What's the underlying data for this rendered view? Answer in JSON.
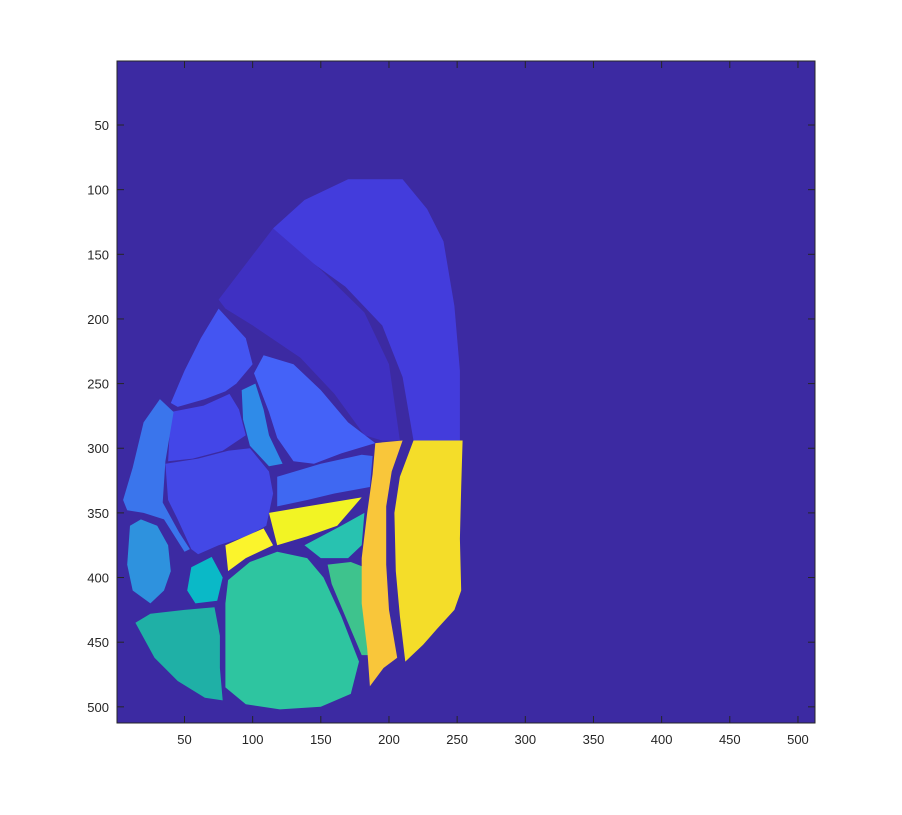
{
  "chart_data": {
    "type": "heatmap",
    "title": "",
    "xlabel": "",
    "ylabel": "",
    "xlim": [
      0.5,
      512.5
    ],
    "ylim": [
      0.5,
      512.5
    ],
    "y_reversed": true,
    "grid": false,
    "colormap": "parula",
    "background_color": "#3c2aa2",
    "boundary_color": "#3c2aa2",
    "x_ticks": [
      50,
      100,
      150,
      200,
      250,
      300,
      350,
      400,
      450,
      500
    ],
    "y_ticks": [
      50,
      100,
      150,
      200,
      250,
      300,
      350,
      400,
      450,
      500
    ],
    "regions": [
      {
        "name": "region-top-large",
        "color": "#433cdc",
        "polygon": [
          [
            115,
            130
          ],
          [
            138,
            108
          ],
          [
            170,
            92
          ],
          [
            210,
            92
          ],
          [
            228,
            115
          ],
          [
            240,
            140
          ],
          [
            248,
            190
          ],
          [
            252,
            240
          ],
          [
            252,
            294
          ],
          [
            218,
            294
          ],
          [
            210,
            245
          ],
          [
            195,
            205
          ],
          [
            168,
            175
          ],
          [
            135,
            150
          ],
          [
            118,
            136
          ]
        ]
      },
      {
        "name": "region-top-band",
        "color": "#3f30c2",
        "polygon": [
          [
            75,
            185
          ],
          [
            115,
            130
          ],
          [
            150,
            162
          ],
          [
            182,
            195
          ],
          [
            200,
            235
          ],
          [
            208,
            294
          ],
          [
            195,
            294
          ],
          [
            182,
            290
          ],
          [
            160,
            258
          ],
          [
            135,
            230
          ],
          [
            100,
            205
          ],
          [
            80,
            192
          ]
        ]
      },
      {
        "name": "region-left-upper",
        "color": "#4455f2",
        "polygon": [
          [
            40,
            265
          ],
          [
            50,
            240
          ],
          [
            62,
            215
          ],
          [
            75,
            192
          ],
          [
            95,
            215
          ],
          [
            100,
            235
          ],
          [
            88,
            250
          ],
          [
            80,
            256
          ],
          [
            65,
            262
          ],
          [
            45,
            268
          ]
        ]
      },
      {
        "name": "region-center-upper",
        "color": "#4462f8",
        "polygon": [
          [
            101,
            242
          ],
          [
            108,
            228
          ],
          [
            130,
            235
          ],
          [
            150,
            255
          ],
          [
            170,
            280
          ],
          [
            190,
            296
          ],
          [
            165,
            304
          ],
          [
            145,
            312
          ],
          [
            130,
            310
          ],
          [
            118,
            292
          ],
          [
            112,
            272
          ]
        ]
      },
      {
        "name": "region-left-mid",
        "color": "#4346e8",
        "polygon": [
          [
            40,
            272
          ],
          [
            64,
            267
          ],
          [
            83,
            258
          ],
          [
            90,
            270
          ],
          [
            95,
            290
          ],
          [
            78,
            302
          ],
          [
            56,
            308
          ],
          [
            38,
            310
          ]
        ]
      },
      {
        "name": "region-center-small",
        "color": "#2f8be8",
        "polygon": [
          [
            92,
            255
          ],
          [
            102,
            250
          ],
          [
            108,
            270
          ],
          [
            112,
            290
          ],
          [
            122,
            312
          ],
          [
            112,
            314
          ],
          [
            98,
            298
          ],
          [
            93,
            278
          ]
        ]
      },
      {
        "name": "region-center-mid",
        "color": "#4348e6",
        "polygon": [
          [
            36,
            312
          ],
          [
            60,
            308
          ],
          [
            82,
            302
          ],
          [
            98,
            300
          ],
          [
            112,
            318
          ],
          [
            115,
            335
          ],
          [
            110,
            360
          ],
          [
            96,
            368
          ],
          [
            75,
            375
          ],
          [
            60,
            382
          ],
          [
            55,
            378
          ],
          [
            45,
            355
          ],
          [
            38,
            340
          ]
        ]
      },
      {
        "name": "region-center-band",
        "color": "#3f68f2",
        "polygon": [
          [
            118,
            322
          ],
          [
            150,
            312
          ],
          [
            180,
            305
          ],
          [
            188,
            306
          ],
          [
            186,
            330
          ],
          [
            160,
            335
          ],
          [
            140,
            340
          ],
          [
            118,
            345
          ]
        ]
      },
      {
        "name": "region-left-edge",
        "color": "#3a75ec",
        "polygon": [
          [
            5,
            340
          ],
          [
            12,
            315
          ],
          [
            20,
            280
          ],
          [
            32,
            262
          ],
          [
            42,
            272
          ],
          [
            36,
            310
          ],
          [
            34,
            342
          ],
          [
            46,
            365
          ],
          [
            54,
            378
          ],
          [
            50,
            380
          ],
          [
            35,
            355
          ],
          [
            20,
            350
          ],
          [
            8,
            348
          ]
        ]
      },
      {
        "name": "region-left-lobe",
        "color": "#2e92de",
        "polygon": [
          [
            10,
            360
          ],
          [
            18,
            355
          ],
          [
            30,
            360
          ],
          [
            38,
            375
          ],
          [
            40,
            395
          ],
          [
            35,
            410
          ],
          [
            25,
            420
          ],
          [
            12,
            410
          ],
          [
            8,
            390
          ]
        ]
      },
      {
        "name": "region-yellow-center",
        "color": "#f2f424",
        "polygon": [
          [
            112,
            350
          ],
          [
            140,
            345
          ],
          [
            180,
            338
          ],
          [
            162,
            360
          ],
          [
            140,
            368
          ],
          [
            118,
            375
          ]
        ]
      },
      {
        "name": "region-yellow-left",
        "color": "#fbf42c",
        "polygon": [
          [
            80,
            375
          ],
          [
            108,
            362
          ],
          [
            115,
            375
          ],
          [
            95,
            385
          ],
          [
            82,
            395
          ]
        ]
      },
      {
        "name": "region-teal-small",
        "color": "#0ab9c7",
        "polygon": [
          [
            55,
            392
          ],
          [
            70,
            384
          ],
          [
            78,
            400
          ],
          [
            74,
            418
          ],
          [
            58,
            420
          ],
          [
            52,
            410
          ]
        ]
      },
      {
        "name": "region-teal-right",
        "color": "#28c2b0",
        "polygon": [
          [
            138,
            375
          ],
          [
            165,
            360
          ],
          [
            182,
            350
          ],
          [
            180,
            375
          ],
          [
            170,
            385
          ],
          [
            150,
            385
          ]
        ]
      },
      {
        "name": "region-green-right",
        "color": "#3ec38d",
        "polygon": [
          [
            155,
            390
          ],
          [
            172,
            388
          ],
          [
            182,
            392
          ],
          [
            185,
            425
          ],
          [
            186,
            460
          ],
          [
            180,
            460
          ],
          [
            168,
            430
          ],
          [
            158,
            405
          ]
        ]
      },
      {
        "name": "region-green-large",
        "color": "#2ec5a0",
        "polygon": [
          [
            80,
            420
          ],
          [
            82,
            402
          ],
          [
            98,
            388
          ],
          [
            118,
            380
          ],
          [
            140,
            385
          ],
          [
            152,
            400
          ],
          [
            165,
            430
          ],
          [
            178,
            465
          ],
          [
            172,
            490
          ],
          [
            150,
            500
          ],
          [
            120,
            502
          ],
          [
            95,
            498
          ],
          [
            80,
            485
          ]
        ]
      },
      {
        "name": "region-bottom-left",
        "color": "#1fb0a6",
        "polygon": [
          [
            14,
            435
          ],
          [
            25,
            428
          ],
          [
            50,
            425
          ],
          [
            72,
            423
          ],
          [
            76,
            445
          ],
          [
            76,
            470
          ],
          [
            78,
            495
          ],
          [
            65,
            493
          ],
          [
            45,
            480
          ],
          [
            28,
            462
          ]
        ]
      },
      {
        "name": "region-yellow-narrow",
        "color": "#f9c63a",
        "polygon": [
          [
            190,
            296
          ],
          [
            210,
            294
          ],
          [
            202,
            318
          ],
          [
            198,
            345
          ],
          [
            198,
            390
          ],
          [
            200,
            425
          ],
          [
            206,
            462
          ],
          [
            196,
            470
          ],
          [
            186,
            484
          ],
          [
            184,
            455
          ],
          [
            180,
            420
          ],
          [
            180,
            385
          ],
          [
            184,
            350
          ],
          [
            188,
            320
          ]
        ]
      },
      {
        "name": "region-yellow-large",
        "color": "#f4dd29",
        "polygon": [
          [
            218,
            294
          ],
          [
            254,
            294
          ],
          [
            253,
            330
          ],
          [
            252,
            370
          ],
          [
            253,
            410
          ],
          [
            248,
            425
          ],
          [
            235,
            440
          ],
          [
            225,
            452
          ],
          [
            212,
            465
          ],
          [
            208,
            430
          ],
          [
            205,
            395
          ],
          [
            204,
            350
          ],
          [
            208,
            322
          ]
        ]
      }
    ]
  }
}
